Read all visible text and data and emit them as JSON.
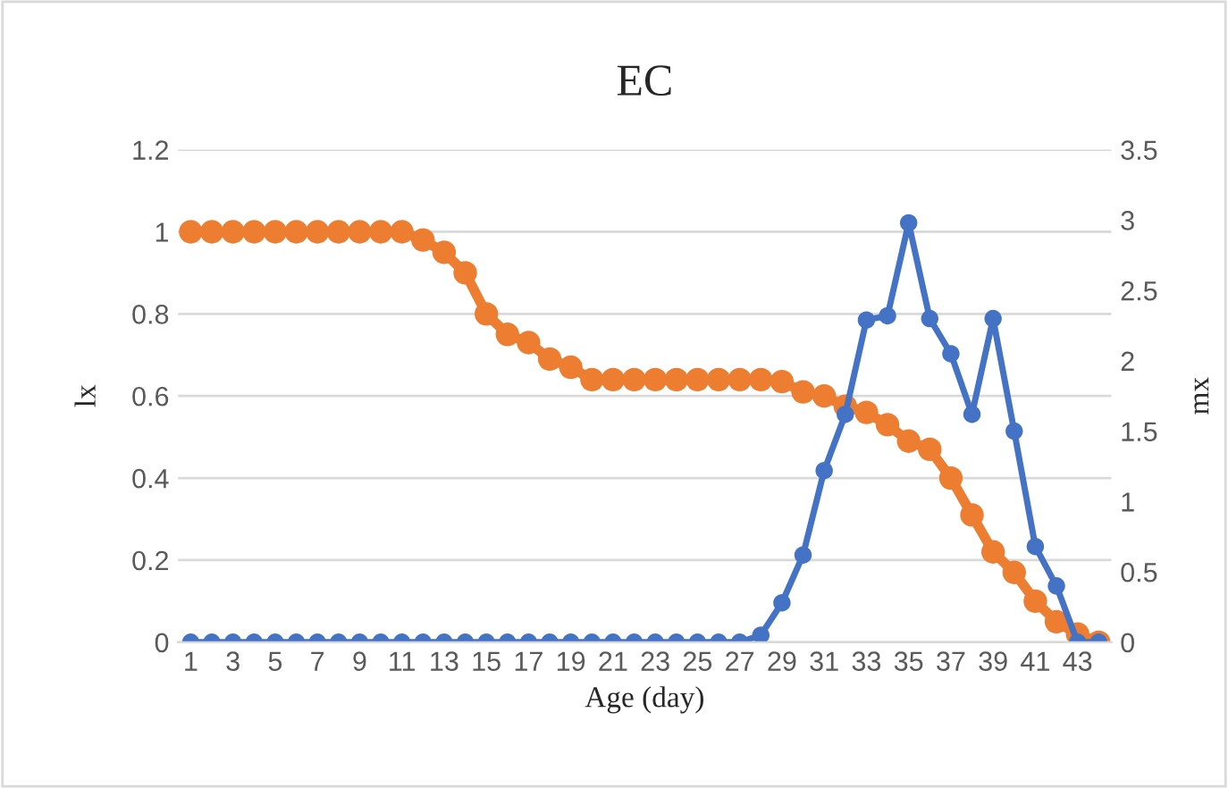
{
  "chart_data": {
    "type": "line",
    "title": "EC",
    "xlabel": "Age (day)",
    "ylabel": "lx",
    "y2label": "mx",
    "categories": [
      "1",
      null,
      "3",
      null,
      "5",
      null,
      "7",
      null,
      "9",
      null,
      "11",
      null,
      "13",
      null,
      "15",
      null,
      "17",
      null,
      "19",
      null,
      "21",
      null,
      "23",
      null,
      "25",
      null,
      "27",
      null,
      "29",
      null,
      "31",
      null,
      "33",
      null,
      "35",
      null,
      "37",
      null,
      "39",
      null,
      "41",
      null,
      "43",
      null
    ],
    "series": [
      {
        "color": "#4472c4",
        "axis": "y2",
        "values": [
          0,
          0,
          0,
          0,
          0,
          0,
          0,
          0,
          0,
          0,
          0,
          0,
          0,
          0,
          0,
          0,
          0,
          0,
          0,
          0,
          0,
          0,
          0,
          0,
          0,
          0,
          0,
          0.05,
          0.28,
          0.62,
          1.22,
          1.62,
          2.29,
          2.32,
          2.98,
          2.3,
          2.05,
          1.62,
          2.3,
          1.5,
          0.68,
          0.4,
          0,
          0
        ]
      },
      {
        "color": "#ed7d31",
        "axis": "y",
        "values": [
          1,
          1,
          1,
          1,
          1,
          1,
          1,
          1,
          1,
          1,
          1,
          0.98,
          0.95,
          0.9,
          0.8,
          0.75,
          0.73,
          0.69,
          0.67,
          0.64,
          0.64,
          0.64,
          0.64,
          0.64,
          0.64,
          0.64,
          0.64,
          0.64,
          0.635,
          0.61,
          0.6,
          0.575,
          0.56,
          0.53,
          0.49,
          0.47,
          0.4,
          0.31,
          0.22,
          0.17,
          0.1,
          0.05,
          0.02,
          0
        ]
      }
    ],
    "ylim": [
      0,
      1.2
    ],
    "yticks": [
      0,
      0.2,
      0.4,
      0.6,
      0.8,
      1,
      1.2
    ],
    "y2lim": [
      0,
      3.5
    ],
    "y2ticks": [
      0,
      0.5,
      1,
      1.5,
      2,
      2.5,
      3,
      3.5
    ],
    "grid": "y",
    "marker": "circle",
    "line_style": "solid",
    "legend": false
  }
}
